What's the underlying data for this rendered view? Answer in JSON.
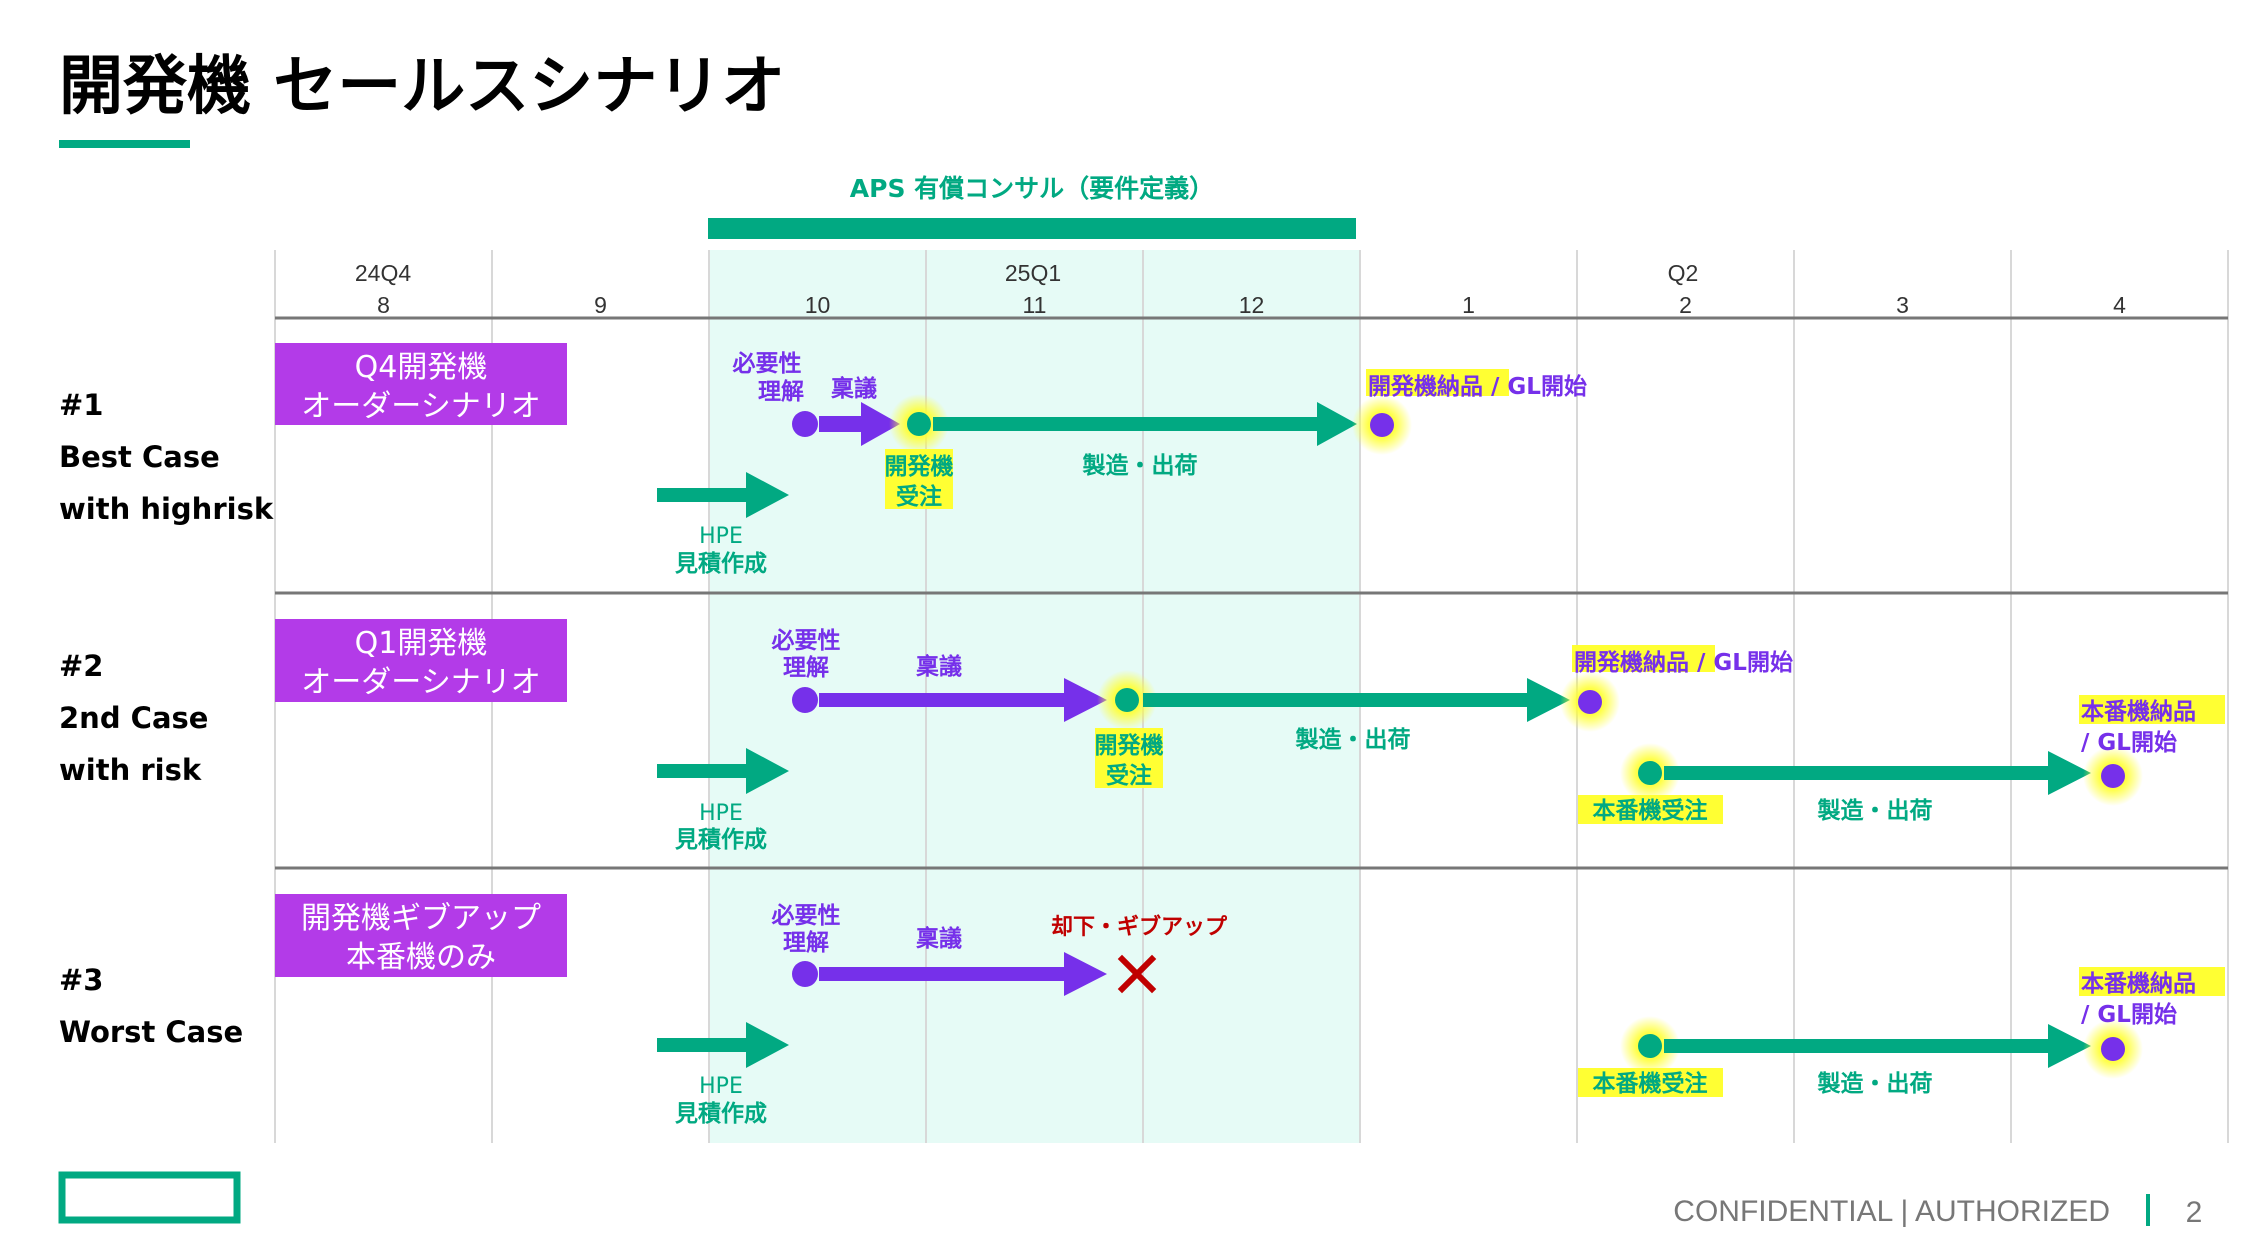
{
  "title": "開発機 セールスシナリオ",
  "colors": {
    "green": "#01A982",
    "purple": "#7630EA",
    "box": "#B33BE8",
    "highlight": "#E6FBF6",
    "yellow": "#FFFF33",
    "red": "#C00000"
  },
  "aps_label": "APS 有償コンサル（要件定義）",
  "timeline": {
    "quarters": [
      "24Q4",
      "25Q1",
      "Q2"
    ],
    "months": [
      "8",
      "9",
      "10",
      "11",
      "12",
      "1",
      "2",
      "3",
      "4"
    ]
  },
  "common": {
    "need_1": "必要性",
    "need_2": "理解",
    "ringi": "稟議",
    "hpe_1": "HPE",
    "hpe_2": "見積作成",
    "mfg": "製造・出荷",
    "dev_order_1": "開発機",
    "dev_order_2": "受注",
    "dev_delivery": "開発機納品",
    "gl_start": " / GL開始",
    "prod_order": "本番機受注",
    "prod_delivery": "本番機納品",
    "gl_start_line": "/ GL開始"
  },
  "scenarios": [
    {
      "num": "#1",
      "name_1": "Best Case",
      "name_2": "with highrisk",
      "box_1": "Q4開発機",
      "box_2": "オーダーシナリオ"
    },
    {
      "num": "#2",
      "name_1": "2nd Case",
      "name_2": "with risk",
      "box_1": "Q1開発機",
      "box_2": "オーダーシナリオ"
    },
    {
      "num": "#3",
      "name_1": "Worst Case",
      "name_2": "",
      "box_1": "開発機ギブアップ",
      "box_2": "本番機のみ",
      "reject": "却下・ギブアップ"
    }
  ],
  "footer": {
    "confidential": "CONFIDENTIAL | AUTHORIZED",
    "page": "2"
  }
}
